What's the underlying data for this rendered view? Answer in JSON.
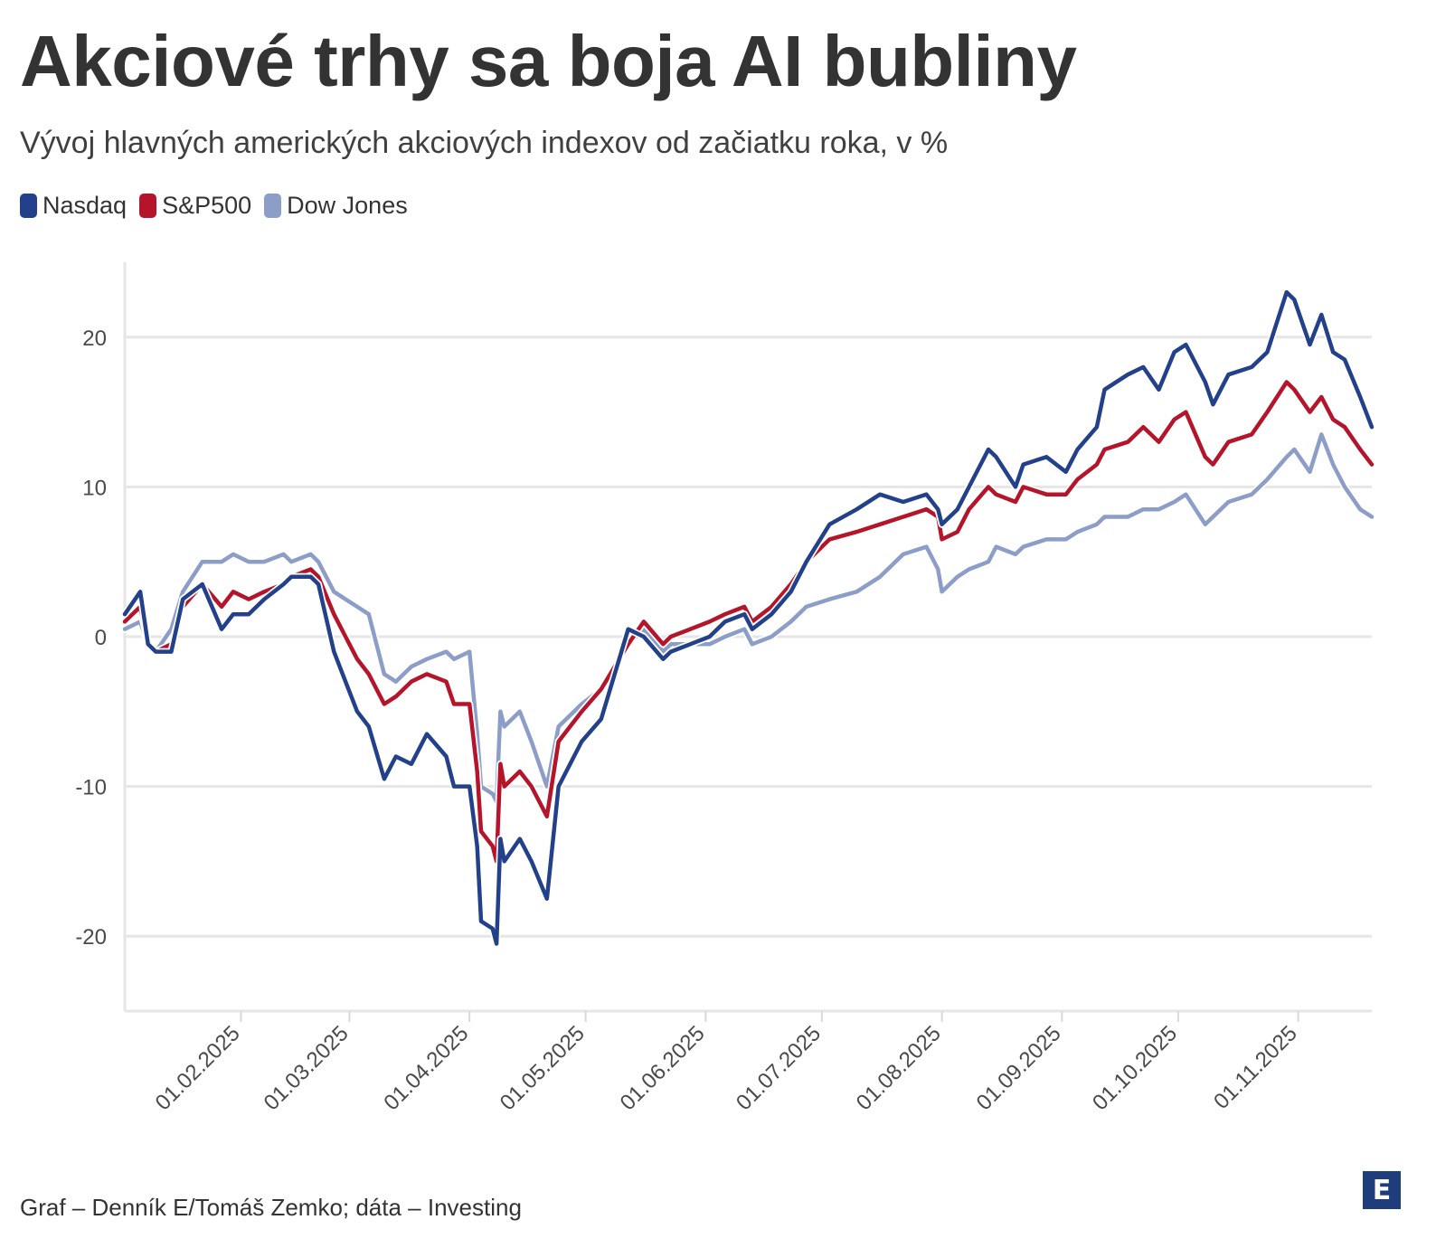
{
  "header": {
    "title": "Akciové trhy sa boja AI bubliny",
    "subtitle": "Vývoj hlavných amerických akciových indexov od začiatku roka, v %"
  },
  "footer": {
    "source": "Graf – Denník E/Tomáš Zemko; dáta – Investing",
    "logo_glyph": "E",
    "logo_icon": "denník-e-logo-icon"
  },
  "colors": {
    "nasdaq": "#23418a",
    "sp500": "#b5152b",
    "dowjones": "#8c9ec7",
    "grid": "#e6e6e6",
    "logo": "#1e3d7a"
  },
  "chart_data": {
    "type": "line",
    "title": "Akciové trhy sa boja AI bubliny",
    "subtitle": "Vývoj hlavných amerických akciových indexov od začiatku roka, v %",
    "xlabel": "",
    "ylabel": "",
    "ylim": [
      -25,
      25
    ],
    "y_ticks": [
      -20,
      -10,
      0,
      10,
      20
    ],
    "y_tick_labels": [
      "-20",
      "-10",
      "0",
      "10",
      "20"
    ],
    "x_tick_dates": [
      "2025-02-01",
      "2025-03-01",
      "2025-04-01",
      "2025-05-01",
      "2025-06-01",
      "2025-07-01",
      "2025-08-01",
      "2025-09-01",
      "2025-10-01",
      "2025-11-01"
    ],
    "x_tick_labels": [
      "01.02.2025",
      "01.03.2025",
      "01.04.2025",
      "01.05.2025",
      "01.06.2025",
      "01.07.2025",
      "01.08.2025",
      "01.09.2025",
      "01.10.2025",
      "01.11.2025"
    ],
    "x_range": [
      "2025-01-02",
      "2025-11-20"
    ],
    "grid": "horizontal",
    "legend_position": "top-left",
    "x": [
      "2025-01-02",
      "2025-01-06",
      "2025-01-08",
      "2025-01-10",
      "2025-01-14",
      "2025-01-17",
      "2025-01-22",
      "2025-01-27",
      "2025-01-30",
      "2025-02-03",
      "2025-02-07",
      "2025-02-12",
      "2025-02-14",
      "2025-02-19",
      "2025-02-21",
      "2025-02-25",
      "2025-02-28",
      "2025-03-03",
      "2025-03-06",
      "2025-03-10",
      "2025-03-13",
      "2025-03-17",
      "2025-03-21",
      "2025-03-26",
      "2025-03-28",
      "2025-04-01",
      "2025-04-03",
      "2025-04-04",
      "2025-04-07",
      "2025-04-08",
      "2025-04-09",
      "2025-04-10",
      "2025-04-14",
      "2025-04-17",
      "2025-04-21",
      "2025-04-24",
      "2025-04-30",
      "2025-05-05",
      "2025-05-12",
      "2025-05-16",
      "2025-05-21",
      "2025-05-23",
      "2025-05-28",
      "2025-06-02",
      "2025-06-06",
      "2025-06-11",
      "2025-06-13",
      "2025-06-18",
      "2025-06-23",
      "2025-06-27",
      "2025-07-03",
      "2025-07-10",
      "2025-07-16",
      "2025-07-22",
      "2025-07-28",
      "2025-07-31",
      "2025-08-01",
      "2025-08-05",
      "2025-08-08",
      "2025-08-13",
      "2025-08-15",
      "2025-08-20",
      "2025-08-22",
      "2025-08-28",
      "2025-09-02",
      "2025-09-05",
      "2025-09-10",
      "2025-09-12",
      "2025-09-18",
      "2025-09-22",
      "2025-09-26",
      "2025-09-30",
      "2025-10-03",
      "2025-10-08",
      "2025-10-10",
      "2025-10-14",
      "2025-10-20",
      "2025-10-24",
      "2025-10-29",
      "2025-10-31",
      "2025-11-04",
      "2025-11-07",
      "2025-11-10",
      "2025-11-13",
      "2025-11-17",
      "2025-11-20"
    ],
    "series": [
      {
        "name": "Nasdaq",
        "color": "#23418a",
        "values": [
          1.5,
          3.0,
          -0.5,
          -1.0,
          -1.0,
          2.5,
          3.5,
          0.5,
          1.5,
          1.5,
          2.5,
          3.5,
          4.0,
          4.0,
          3.5,
          -1.0,
          -3.0,
          -5.0,
          -6.0,
          -9.5,
          -8.0,
          -8.5,
          -6.5,
          -8.0,
          -10.0,
          -10.0,
          -14.0,
          -19.0,
          -19.5,
          -20.5,
          -13.5,
          -15.0,
          -13.5,
          -15.0,
          -17.5,
          -10.0,
          -7.0,
          -5.5,
          0.5,
          0.0,
          -1.5,
          -1.0,
          -0.5,
          0.0,
          1.0,
          1.5,
          0.5,
          1.5,
          3.0,
          5.0,
          7.5,
          8.5,
          9.5,
          9.0,
          9.5,
          8.5,
          7.5,
          8.5,
          10.0,
          12.5,
          12.0,
          10.0,
          11.5,
          12.0,
          11.0,
          12.5,
          14.0,
          16.5,
          17.5,
          18.0,
          16.5,
          19.0,
          19.5,
          17.0,
          15.5,
          17.5,
          18.0,
          19.0,
          23.0,
          22.5,
          19.5,
          21.5,
          19.0,
          18.5,
          16.0,
          14.0
        ]
      },
      {
        "name": "S&P500",
        "color": "#b5152b",
        "values": [
          1.0,
          2.0,
          -0.5,
          -1.0,
          -0.5,
          2.0,
          3.5,
          2.0,
          3.0,
          2.5,
          3.0,
          3.5,
          4.0,
          4.5,
          4.0,
          1.5,
          0.0,
          -1.5,
          -2.5,
          -4.5,
          -4.0,
          -3.0,
          -2.5,
          -3.0,
          -4.5,
          -4.5,
          -9.0,
          -13.0,
          -14.0,
          -15.0,
          -8.5,
          -10.0,
          -9.0,
          -10.0,
          -12.0,
          -7.0,
          -5.0,
          -3.5,
          -0.5,
          1.0,
          -0.5,
          0.0,
          0.5,
          1.0,
          1.5,
          2.0,
          1.0,
          2.0,
          3.5,
          5.0,
          6.5,
          7.0,
          7.5,
          8.0,
          8.5,
          8.0,
          6.5,
          7.0,
          8.5,
          10.0,
          9.5,
          9.0,
          10.0,
          9.5,
          9.5,
          10.5,
          11.5,
          12.5,
          13.0,
          14.0,
          13.0,
          14.5,
          15.0,
          12.0,
          11.5,
          13.0,
          13.5,
          15.0,
          17.0,
          16.5,
          15.0,
          16.0,
          14.5,
          14.0,
          12.5,
          11.5
        ]
      },
      {
        "name": "Dow Jones",
        "color": "#8c9ec7",
        "values": [
          0.5,
          1.0,
          -0.5,
          -1.0,
          0.5,
          3.0,
          5.0,
          5.0,
          5.5,
          5.0,
          5.0,
          5.5,
          5.0,
          5.5,
          5.0,
          3.0,
          2.5,
          2.0,
          1.5,
          -2.5,
          -3.0,
          -2.0,
          -1.5,
          -1.0,
          -1.5,
          -1.0,
          -6.5,
          -10.0,
          -10.5,
          -11.0,
          -5.0,
          -6.0,
          -5.0,
          -7.0,
          -10.0,
          -6.0,
          -4.5,
          -3.5,
          -0.5,
          0.5,
          -1.0,
          -0.5,
          -0.5,
          -0.5,
          0.0,
          0.5,
          -0.5,
          0.0,
          1.0,
          2.0,
          2.5,
          3.0,
          4.0,
          5.5,
          6.0,
          4.5,
          3.0,
          4.0,
          4.5,
          5.0,
          6.0,
          5.5,
          6.0,
          6.5,
          6.5,
          7.0,
          7.5,
          8.0,
          8.0,
          8.5,
          8.5,
          9.0,
          9.5,
          7.5,
          8.0,
          9.0,
          9.5,
          10.5,
          12.0,
          12.5,
          11.0,
          13.5,
          11.5,
          10.0,
          8.5,
          8.0
        ]
      }
    ]
  }
}
